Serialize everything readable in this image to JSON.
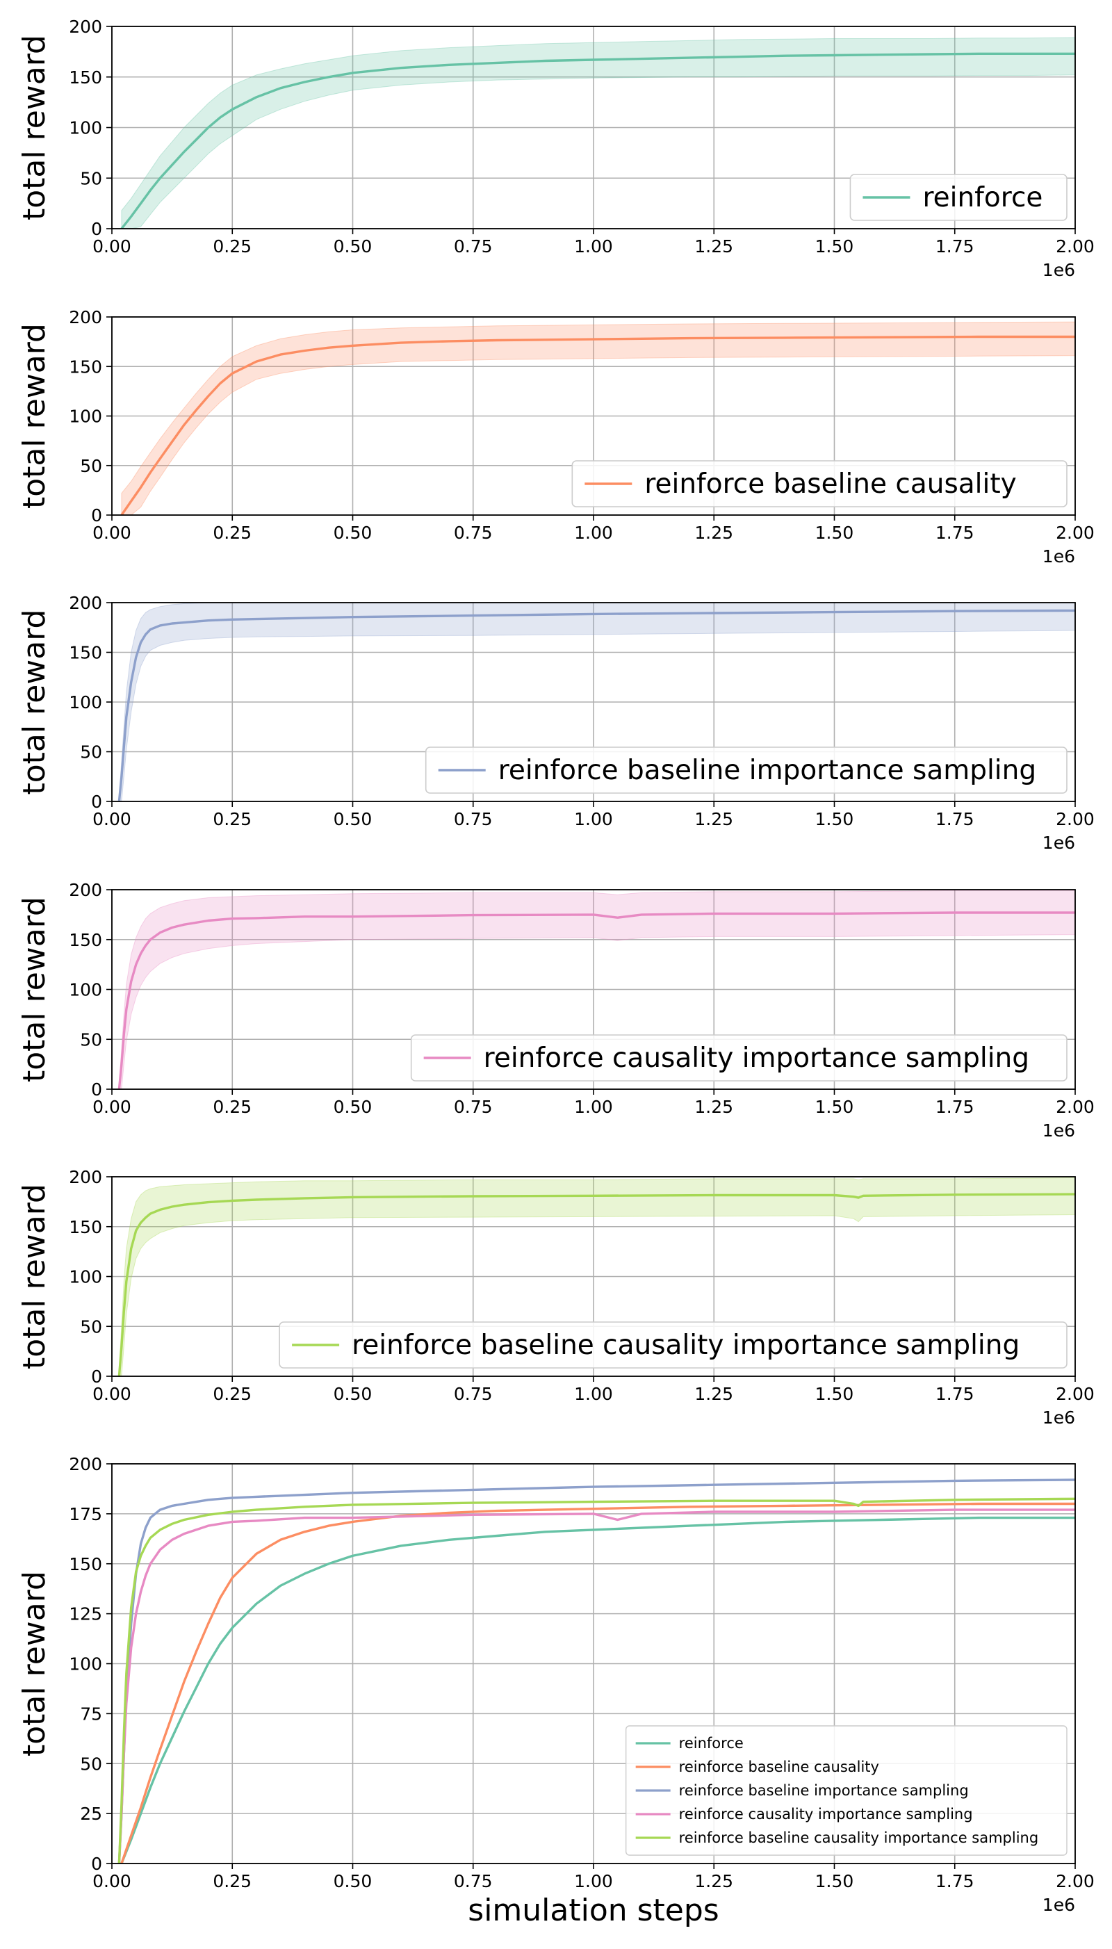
{
  "chart_data": [
    {
      "type": "line",
      "xlabel": "",
      "ylabel": "total reward",
      "xlim": [
        0,
        2000000
      ],
      "ylim": [
        0,
        200
      ],
      "x_ticks": [
        "0.00",
        "0.25",
        "0.50",
        "0.75",
        "1.00",
        "1.25",
        "1.50",
        "1.75",
        "2.00"
      ],
      "y_ticks": [
        "0",
        "50",
        "100",
        "150",
        "200"
      ],
      "x_offset_label": "1e6",
      "grid": true,
      "legend_position": "lower-right",
      "legend_size": "large",
      "series": [
        {
          "name": "reinforce",
          "color": "#66c2a5",
          "x": [
            20000,
            40000,
            60000,
            80000,
            100000,
            125000,
            150000,
            175000,
            200000,
            225000,
            250000,
            300000,
            350000,
            400000,
            450000,
            500000,
            600000,
            700000,
            800000,
            900000,
            1000000,
            1100000,
            1200000,
            1300000,
            1400000,
            1500000,
            1600000,
            1700000,
            1800000,
            1900000,
            2000000
          ],
          "y": [
            0,
            12,
            25,
            38,
            50,
            63,
            76,
            88,
            100,
            110,
            118,
            130,
            139,
            145,
            150,
            154,
            159,
            162,
            164,
            166,
            167,
            168,
            169,
            170,
            171,
            171.5,
            172,
            172.5,
            173,
            173,
            173
          ],
          "lower": [
            0,
            0,
            2,
            14,
            26,
            38,
            50,
            62,
            74,
            84,
            92,
            108,
            118,
            126,
            132,
            137,
            142,
            145,
            147,
            148,
            149,
            149.5,
            150,
            150,
            150.5,
            151,
            151,
            151,
            151.5,
            151.5,
            152
          ],
          "upper": [
            18,
            30,
            44,
            58,
            72,
            86,
            100,
            112,
            124,
            134,
            142,
            152,
            158,
            163,
            167,
            171,
            176,
            179,
            181,
            183,
            184,
            185,
            186,
            187,
            187.5,
            188,
            188,
            188,
            188.5,
            188.5,
            189
          ]
        }
      ]
    },
    {
      "type": "line",
      "xlabel": "",
      "ylabel": "total reward",
      "xlim": [
        0,
        2000000
      ],
      "ylim": [
        0,
        200
      ],
      "x_ticks": [
        "0.00",
        "0.25",
        "0.50",
        "0.75",
        "1.00",
        "1.25",
        "1.50",
        "1.75",
        "2.00"
      ],
      "y_ticks": [
        "0",
        "50",
        "100",
        "150",
        "200"
      ],
      "x_offset_label": "1e6",
      "grid": true,
      "legend_position": "lower-right",
      "legend_size": "large",
      "series": [
        {
          "name": "reinforce baseline causality",
          "color": "#fc8d62",
          "x": [
            20000,
            40000,
            60000,
            80000,
            100000,
            125000,
            150000,
            175000,
            200000,
            225000,
            250000,
            300000,
            350000,
            400000,
            450000,
            500000,
            600000,
            700000,
            800000,
            900000,
            1000000,
            1200000,
            1400000,
            1600000,
            1800000,
            2000000
          ],
          "y": [
            0,
            14,
            28,
            43,
            57,
            74,
            91,
            106,
            120,
            133,
            143,
            155,
            162,
            166,
            169,
            171,
            174,
            175.5,
            176.5,
            177,
            177.5,
            178.5,
            179,
            179.5,
            180,
            180
          ],
          "lower": [
            0,
            0,
            8,
            24,
            38,
            56,
            73,
            88,
            102,
            114,
            124,
            137,
            143,
            147,
            150,
            152,
            155,
            156,
            157,
            157.5,
            158,
            159,
            159.5,
            160,
            160.5,
            161
          ],
          "upper": [
            22,
            34,
            49,
            63,
            77,
            93,
            108,
            123,
            137,
            150,
            160,
            171,
            178,
            182,
            185,
            187,
            189,
            190,
            191,
            191.5,
            192,
            193,
            193.5,
            194,
            194.5,
            195
          ]
        }
      ]
    },
    {
      "type": "line",
      "xlabel": "",
      "ylabel": "total reward",
      "xlim": [
        0,
        2000000
      ],
      "ylim": [
        0,
        200
      ],
      "x_ticks": [
        "0.00",
        "0.25",
        "0.50",
        "0.75",
        "1.00",
        "1.25",
        "1.50",
        "1.75",
        "2.00"
      ],
      "y_ticks": [
        "0",
        "50",
        "100",
        "150",
        "200"
      ],
      "x_offset_label": "1e6",
      "grid": true,
      "legend_position": "lower-right",
      "legend_size": "large",
      "series": [
        {
          "name": "reinforce baseline importance sampling",
          "color": "#8da0cb",
          "x": [
            15000,
            20000,
            25000,
            30000,
            40000,
            50000,
            60000,
            70000,
            80000,
            100000,
            125000,
            150000,
            200000,
            250000,
            300000,
            400000,
            500000,
            750000,
            1000000,
            1250000,
            1500000,
            1750000,
            2000000
          ],
          "y": [
            0,
            25,
            55,
            85,
            120,
            145,
            160,
            168,
            173,
            177,
            179,
            180,
            182,
            183,
            183.5,
            184.5,
            185.5,
            187,
            188.5,
            189.5,
            190.5,
            191.5,
            192
          ],
          "lower": [
            0,
            0,
            25,
            52,
            90,
            118,
            136,
            146,
            152,
            157,
            160,
            162,
            164,
            165,
            165.5,
            166,
            166.5,
            167,
            168,
            169,
            170,
            171,
            172
          ],
          "upper": [
            5,
            40,
            75,
            110,
            150,
            172,
            184,
            190,
            193,
            196,
            198,
            199,
            200,
            200,
            200,
            200,
            200,
            200,
            200,
            200,
            200,
            200,
            200
          ]
        }
      ]
    },
    {
      "type": "line",
      "xlabel": "",
      "ylabel": "total reward",
      "xlim": [
        0,
        2000000
      ],
      "ylim": [
        0,
        200
      ],
      "x_ticks": [
        "0.00",
        "0.25",
        "0.50",
        "0.75",
        "1.00",
        "1.25",
        "1.50",
        "1.75",
        "2.00"
      ],
      "y_ticks": [
        "0",
        "50",
        "100",
        "150",
        "200"
      ],
      "x_offset_label": "1e6",
      "grid": true,
      "legend_position": "lower-right",
      "legend_size": "large",
      "series": [
        {
          "name": "reinforce causality importance sampling",
          "color": "#e78ac3",
          "x": [
            15000,
            20000,
            25000,
            30000,
            40000,
            50000,
            60000,
            70000,
            80000,
            100000,
            125000,
            150000,
            200000,
            250000,
            300000,
            400000,
            500000,
            750000,
            1000000,
            1050000,
            1100000,
            1250000,
            1500000,
            1750000,
            2000000
          ],
          "y": [
            0,
            25,
            55,
            80,
            108,
            125,
            136,
            144,
            150,
            157,
            162,
            165,
            169,
            171,
            171.5,
            173,
            173,
            174.5,
            175,
            172,
            175,
            176,
            176,
            177,
            177
          ],
          "lower": [
            0,
            0,
            25,
            48,
            75,
            92,
            104,
            112,
            118,
            126,
            132,
            136,
            141,
            144,
            146,
            148,
            150,
            151,
            152,
            149,
            152,
            153,
            153,
            154,
            155
          ],
          "upper": [
            5,
            40,
            75,
            105,
            135,
            152,
            163,
            171,
            176,
            182,
            186,
            189,
            192,
            193,
            194,
            195,
            196,
            197,
            197,
            195,
            197,
            198,
            198,
            199,
            199
          ]
        }
      ]
    },
    {
      "type": "line",
      "xlabel": "",
      "ylabel": "total reward",
      "xlim": [
        0,
        2000000
      ],
      "ylim": [
        0,
        200
      ],
      "x_ticks": [
        "0.00",
        "0.25",
        "0.50",
        "0.75",
        "1.00",
        "1.25",
        "1.50",
        "1.75",
        "2.00"
      ],
      "y_ticks": [
        "0",
        "50",
        "100",
        "150",
        "200"
      ],
      "x_offset_label": "1e6",
      "grid": true,
      "legend_position": "lower-right",
      "legend_size": "large",
      "series": [
        {
          "name": "reinforce baseline causality importance sampling",
          "color": "#a6d854",
          "x": [
            15000,
            20000,
            25000,
            30000,
            40000,
            50000,
            60000,
            70000,
            80000,
            100000,
            125000,
            150000,
            200000,
            250000,
            300000,
            400000,
            500000,
            750000,
            1000000,
            1250000,
            1500000,
            1540000,
            1550000,
            1560000,
            1750000,
            2000000
          ],
          "y": [
            0,
            30,
            65,
            95,
            128,
            146,
            154,
            159,
            163,
            167,
            170,
            172,
            174.5,
            176,
            177,
            178.5,
            179.5,
            180.5,
            181,
            181.5,
            181.5,
            180,
            179,
            181,
            182,
            182.5
          ],
          "lower": [
            0,
            0,
            30,
            62,
            98,
            118,
            128,
            134,
            138,
            144,
            148,
            151,
            154,
            156,
            157,
            158,
            159,
            159.5,
            160,
            160.5,
            161,
            158,
            155,
            160,
            161,
            162
          ],
          "upper": [
            8,
            50,
            95,
            128,
            158,
            175,
            182,
            186,
            188,
            190,
            191,
            192,
            193,
            194,
            195,
            196,
            196,
            197,
            197,
            198,
            198,
            198,
            197,
            198,
            198,
            199
          ]
        }
      ]
    },
    {
      "type": "line",
      "xlabel": "simulation steps",
      "ylabel": "total reward",
      "xlim": [
        0,
        2000000
      ],
      "ylim": [
        0,
        200
      ],
      "x_ticks": [
        "0.00",
        "0.25",
        "0.50",
        "0.75",
        "1.00",
        "1.25",
        "1.50",
        "1.75",
        "2.00"
      ],
      "y_ticks": [
        "0",
        "25",
        "50",
        "75",
        "100",
        "125",
        "150",
        "175",
        "200"
      ],
      "x_offset_label": "1e6",
      "grid": true,
      "legend_position": "lower-right",
      "legend_size": "small",
      "series": [
        {
          "name": "reinforce",
          "color": "#66c2a5",
          "x": [
            20000,
            40000,
            60000,
            80000,
            100000,
            125000,
            150000,
            175000,
            200000,
            225000,
            250000,
            300000,
            350000,
            400000,
            450000,
            500000,
            600000,
            700000,
            800000,
            900000,
            1000000,
            1100000,
            1200000,
            1300000,
            1400000,
            1500000,
            1600000,
            1700000,
            1800000,
            1900000,
            2000000
          ],
          "y": [
            0,
            12,
            25,
            38,
            50,
            63,
            76,
            88,
            100,
            110,
            118,
            130,
            139,
            145,
            150,
            154,
            159,
            162,
            164,
            166,
            167,
            168,
            169,
            170,
            171,
            171.5,
            172,
            172.5,
            173,
            173,
            173
          ]
        },
        {
          "name": "reinforce baseline causality",
          "color": "#fc8d62",
          "x": [
            20000,
            40000,
            60000,
            80000,
            100000,
            125000,
            150000,
            175000,
            200000,
            225000,
            250000,
            300000,
            350000,
            400000,
            450000,
            500000,
            600000,
            700000,
            800000,
            900000,
            1000000,
            1200000,
            1400000,
            1600000,
            1800000,
            2000000
          ],
          "y": [
            0,
            14,
            28,
            43,
            57,
            74,
            91,
            106,
            120,
            133,
            143,
            155,
            162,
            166,
            169,
            171,
            174,
            175.5,
            176.5,
            177,
            177.5,
            178.5,
            179,
            179.5,
            180,
            180
          ]
        },
        {
          "name": "reinforce baseline importance sampling",
          "color": "#8da0cb",
          "x": [
            15000,
            20000,
            25000,
            30000,
            40000,
            50000,
            60000,
            70000,
            80000,
            100000,
            125000,
            150000,
            200000,
            250000,
            300000,
            400000,
            500000,
            750000,
            1000000,
            1250000,
            1500000,
            1750000,
            2000000
          ],
          "y": [
            0,
            25,
            55,
            85,
            120,
            145,
            160,
            168,
            173,
            177,
            179,
            180,
            182,
            183,
            183.5,
            184.5,
            185.5,
            187,
            188.5,
            189.5,
            190.5,
            191.5,
            192
          ]
        },
        {
          "name": "reinforce causality importance sampling",
          "color": "#e78ac3",
          "x": [
            15000,
            20000,
            25000,
            30000,
            40000,
            50000,
            60000,
            70000,
            80000,
            100000,
            125000,
            150000,
            200000,
            250000,
            300000,
            400000,
            500000,
            750000,
            1000000,
            1050000,
            1100000,
            1250000,
            1500000,
            1750000,
            2000000
          ],
          "y": [
            0,
            25,
            55,
            80,
            108,
            125,
            136,
            144,
            150,
            157,
            162,
            165,
            169,
            171,
            171.5,
            173,
            173,
            174.5,
            175,
            172,
            175,
            176,
            176,
            177,
            177
          ]
        },
        {
          "name": "reinforce baseline causality importance sampling",
          "color": "#a6d854",
          "x": [
            15000,
            20000,
            25000,
            30000,
            40000,
            50000,
            60000,
            70000,
            80000,
            100000,
            125000,
            150000,
            200000,
            250000,
            300000,
            400000,
            500000,
            750000,
            1000000,
            1250000,
            1500000,
            1540000,
            1550000,
            1560000,
            1750000,
            2000000
          ],
          "y": [
            0,
            30,
            65,
            95,
            128,
            146,
            154,
            159,
            163,
            167,
            170,
            172,
            174.5,
            176,
            177,
            178.5,
            179.5,
            180.5,
            181,
            181.5,
            181.5,
            180,
            179,
            181,
            182,
            182.5
          ]
        }
      ]
    }
  ]
}
